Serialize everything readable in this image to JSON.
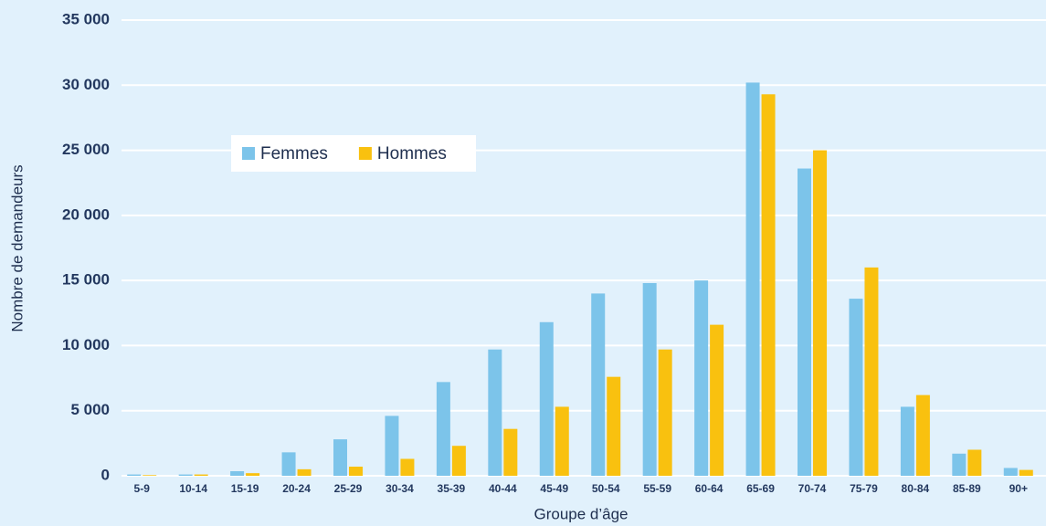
{
  "chart_data": {
    "type": "bar",
    "x_label": "Groupe d’âge",
    "y_label": "Nombre de demandeurs",
    "categories": [
      "5-9",
      "10-14",
      "15-19",
      "20-24",
      "25-29",
      "30-34",
      "35-39",
      "40-44",
      "45-49",
      "50-54",
      "55-59",
      "60-64",
      "65-69",
      "70-74",
      "75-79",
      "80-84",
      "85-89",
      "90+"
    ],
    "series": [
      {
        "name": "Femmes",
        "color": "#7cc4ea",
        "values": [
          100,
          100,
          350,
          1800,
          2800,
          4600,
          7200,
          9700,
          11800,
          14000,
          14800,
          15000,
          30200,
          23600,
          13600,
          5300,
          1700,
          600
        ]
      },
      {
        "name": "Hommes",
        "color": "#f9c10f",
        "values": [
          50,
          100,
          200,
          500,
          700,
          1300,
          2300,
          3600,
          5300,
          7600,
          9700,
          11600,
          29300,
          25000,
          16000,
          6200,
          2000,
          450
        ]
      }
    ],
    "ylim": [
      0,
      35000
    ],
    "yticks": [
      0,
      {
        "value": 5000,
        "label": "5 000"
      },
      {
        "value": 10000,
        "label": "10 000"
      },
      {
        "value": 15000,
        "label": "15 000"
      },
      {
        "value": 20000,
        "label": "20 000"
      },
      {
        "value": 25000,
        "label": "25 000"
      },
      {
        "value": 30000,
        "label": "30 000"
      },
      {
        "value": 35000,
        "label": "35 000"
      }
    ],
    "grid": true,
    "legend": "upper-left"
  }
}
